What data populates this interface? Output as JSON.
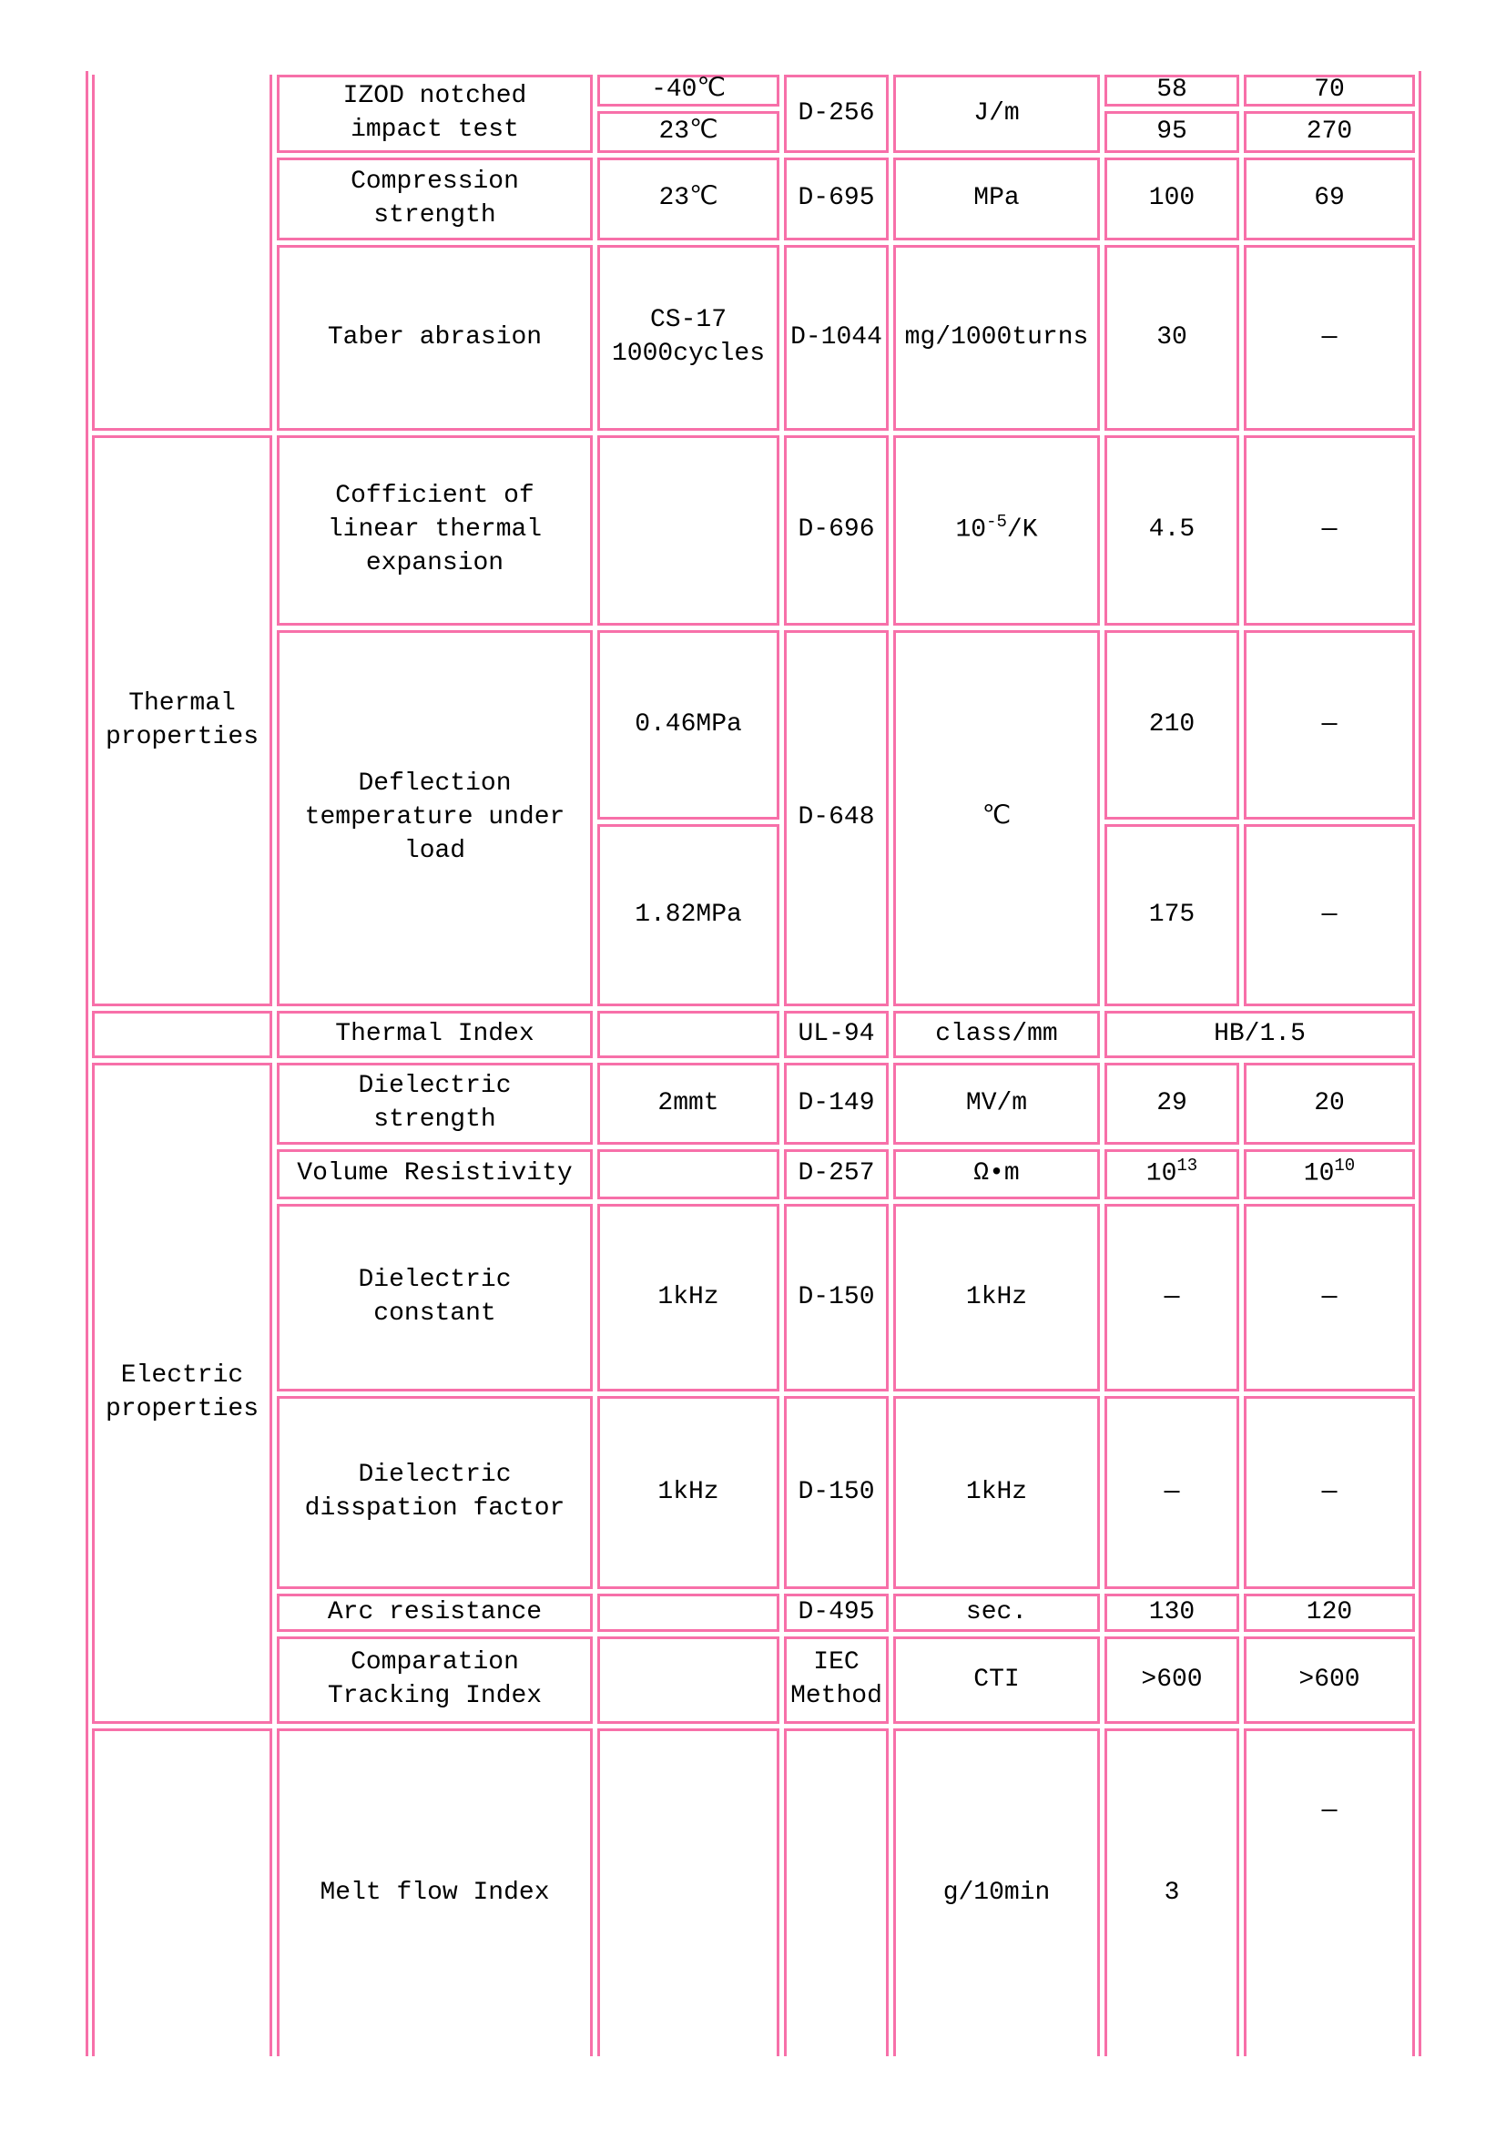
{
  "style": {
    "accent_pink": "#f770a9",
    "text_color": "#000000",
    "background": "#ffffff"
  },
  "table": {
    "groups": {
      "thermal": "Thermal properties",
      "electric": "Electric properties"
    },
    "rows": {
      "izod": {
        "name": "IZOD notched impact test",
        "cond_low": "-40℃",
        "cond_room": "23℃",
        "method": "D-256",
        "unit": "J/m",
        "low_a": "58",
        "low_b": "70",
        "room_a": "95",
        "room_b": "270"
      },
      "compression": {
        "name": "Compression strength",
        "cond": "23℃",
        "method": "D-695",
        "unit": "MPa",
        "a": "100",
        "b": "69"
      },
      "taber": {
        "name": "Taber abrasion",
        "cond": "CS-17 1000cycles",
        "method": "D-1044",
        "unit": "mg/1000turns",
        "a": "30",
        "b": "—"
      },
      "cte": {
        "name": "Cofficient of linear thermal expansion",
        "method": "D-696",
        "unit_base": "10",
        "unit_exp": "-5",
        "unit_suffix": "/K",
        "a": "4.5",
        "b": "—"
      },
      "deflection": {
        "name": "Deflection temperature under load",
        "cond_low": "0.46MPa",
        "cond_high": "1.82MPa",
        "method": "D-648",
        "unit": "℃",
        "low_a": "210",
        "low_b": "—",
        "high_a": "175",
        "high_b": "—"
      },
      "thermal_index": {
        "name": "Thermal Index",
        "method": "UL-94",
        "unit": "class/mm",
        "value": "HB/1.5"
      },
      "dielectric_strength": {
        "name": "Dielectric strength",
        "cond": "2mmt",
        "method": "D-149",
        "unit": "MV/m",
        "a": "29",
        "b": "20"
      },
      "volume_resistivity": {
        "name": "Volume Resistivity",
        "method": "D-257",
        "unit": "Ω•m",
        "a_base": "10",
        "a_exp": "13",
        "b_base": "10",
        "b_exp": "10"
      },
      "dielectric_constant": {
        "name": "Dielectric constant",
        "cond": "1kHz",
        "method": "D-150",
        "unit": "1kHz",
        "a": "—",
        "b": "—"
      },
      "dissipation_factor": {
        "name": "Dielectric disspation factor",
        "cond": "1kHz",
        "method": "D-150",
        "unit": "1kHz",
        "a": "—",
        "b": "—"
      },
      "arc_resistance": {
        "name": "Arc resistance",
        "method": "D-495",
        "unit": "sec.",
        "a": "130",
        "b": "120"
      },
      "tracking_index": {
        "name": "Comparation Tracking Index",
        "method": "IEC Method",
        "unit": "CTI",
        "a": ">600",
        "b": ">600"
      },
      "melt_flow": {
        "name": "Melt flow Index",
        "unit": "g/10min",
        "a": "3",
        "b": "—"
      }
    }
  }
}
